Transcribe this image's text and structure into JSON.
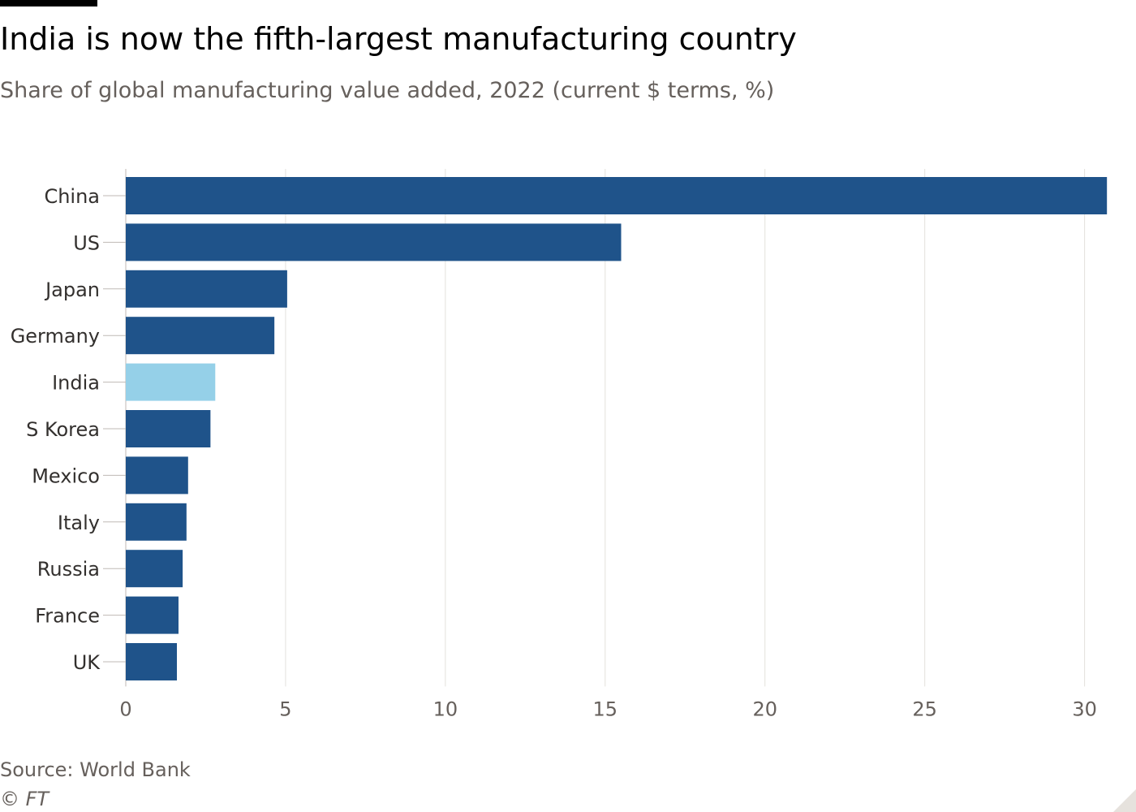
{
  "title": "India is now the fifth-largest manufacturing country",
  "subtitle": "Share of global manufacturing value added, 2022 (current $ terms, %)",
  "source": "Source: World Bank",
  "credit": "© FT",
  "colors": {
    "bar": "#1f538a",
    "highlight": "#95d0e8",
    "grid": "#e3e0dc",
    "tick": "#bfbab5"
  },
  "chart_data": {
    "type": "bar",
    "orientation": "horizontal",
    "categories": [
      "China",
      "US",
      "Japan",
      "Germany",
      "India",
      "S Korea",
      "Mexico",
      "Italy",
      "Russia",
      "France",
      "UK"
    ],
    "values": [
      30.7,
      15.5,
      5.05,
      4.65,
      2.8,
      2.65,
      1.95,
      1.9,
      1.78,
      1.65,
      1.6
    ],
    "highlight": "India",
    "xlim": [
      0,
      31
    ],
    "xticks": [
      0,
      5,
      10,
      15,
      20,
      25,
      30
    ],
    "grid": true,
    "title": "India is now the fifth-largest manufacturing country",
    "subtitle": "Share of global manufacturing value added, 2022 (current $ terms, %)",
    "xlabel": "",
    "ylabel": ""
  }
}
